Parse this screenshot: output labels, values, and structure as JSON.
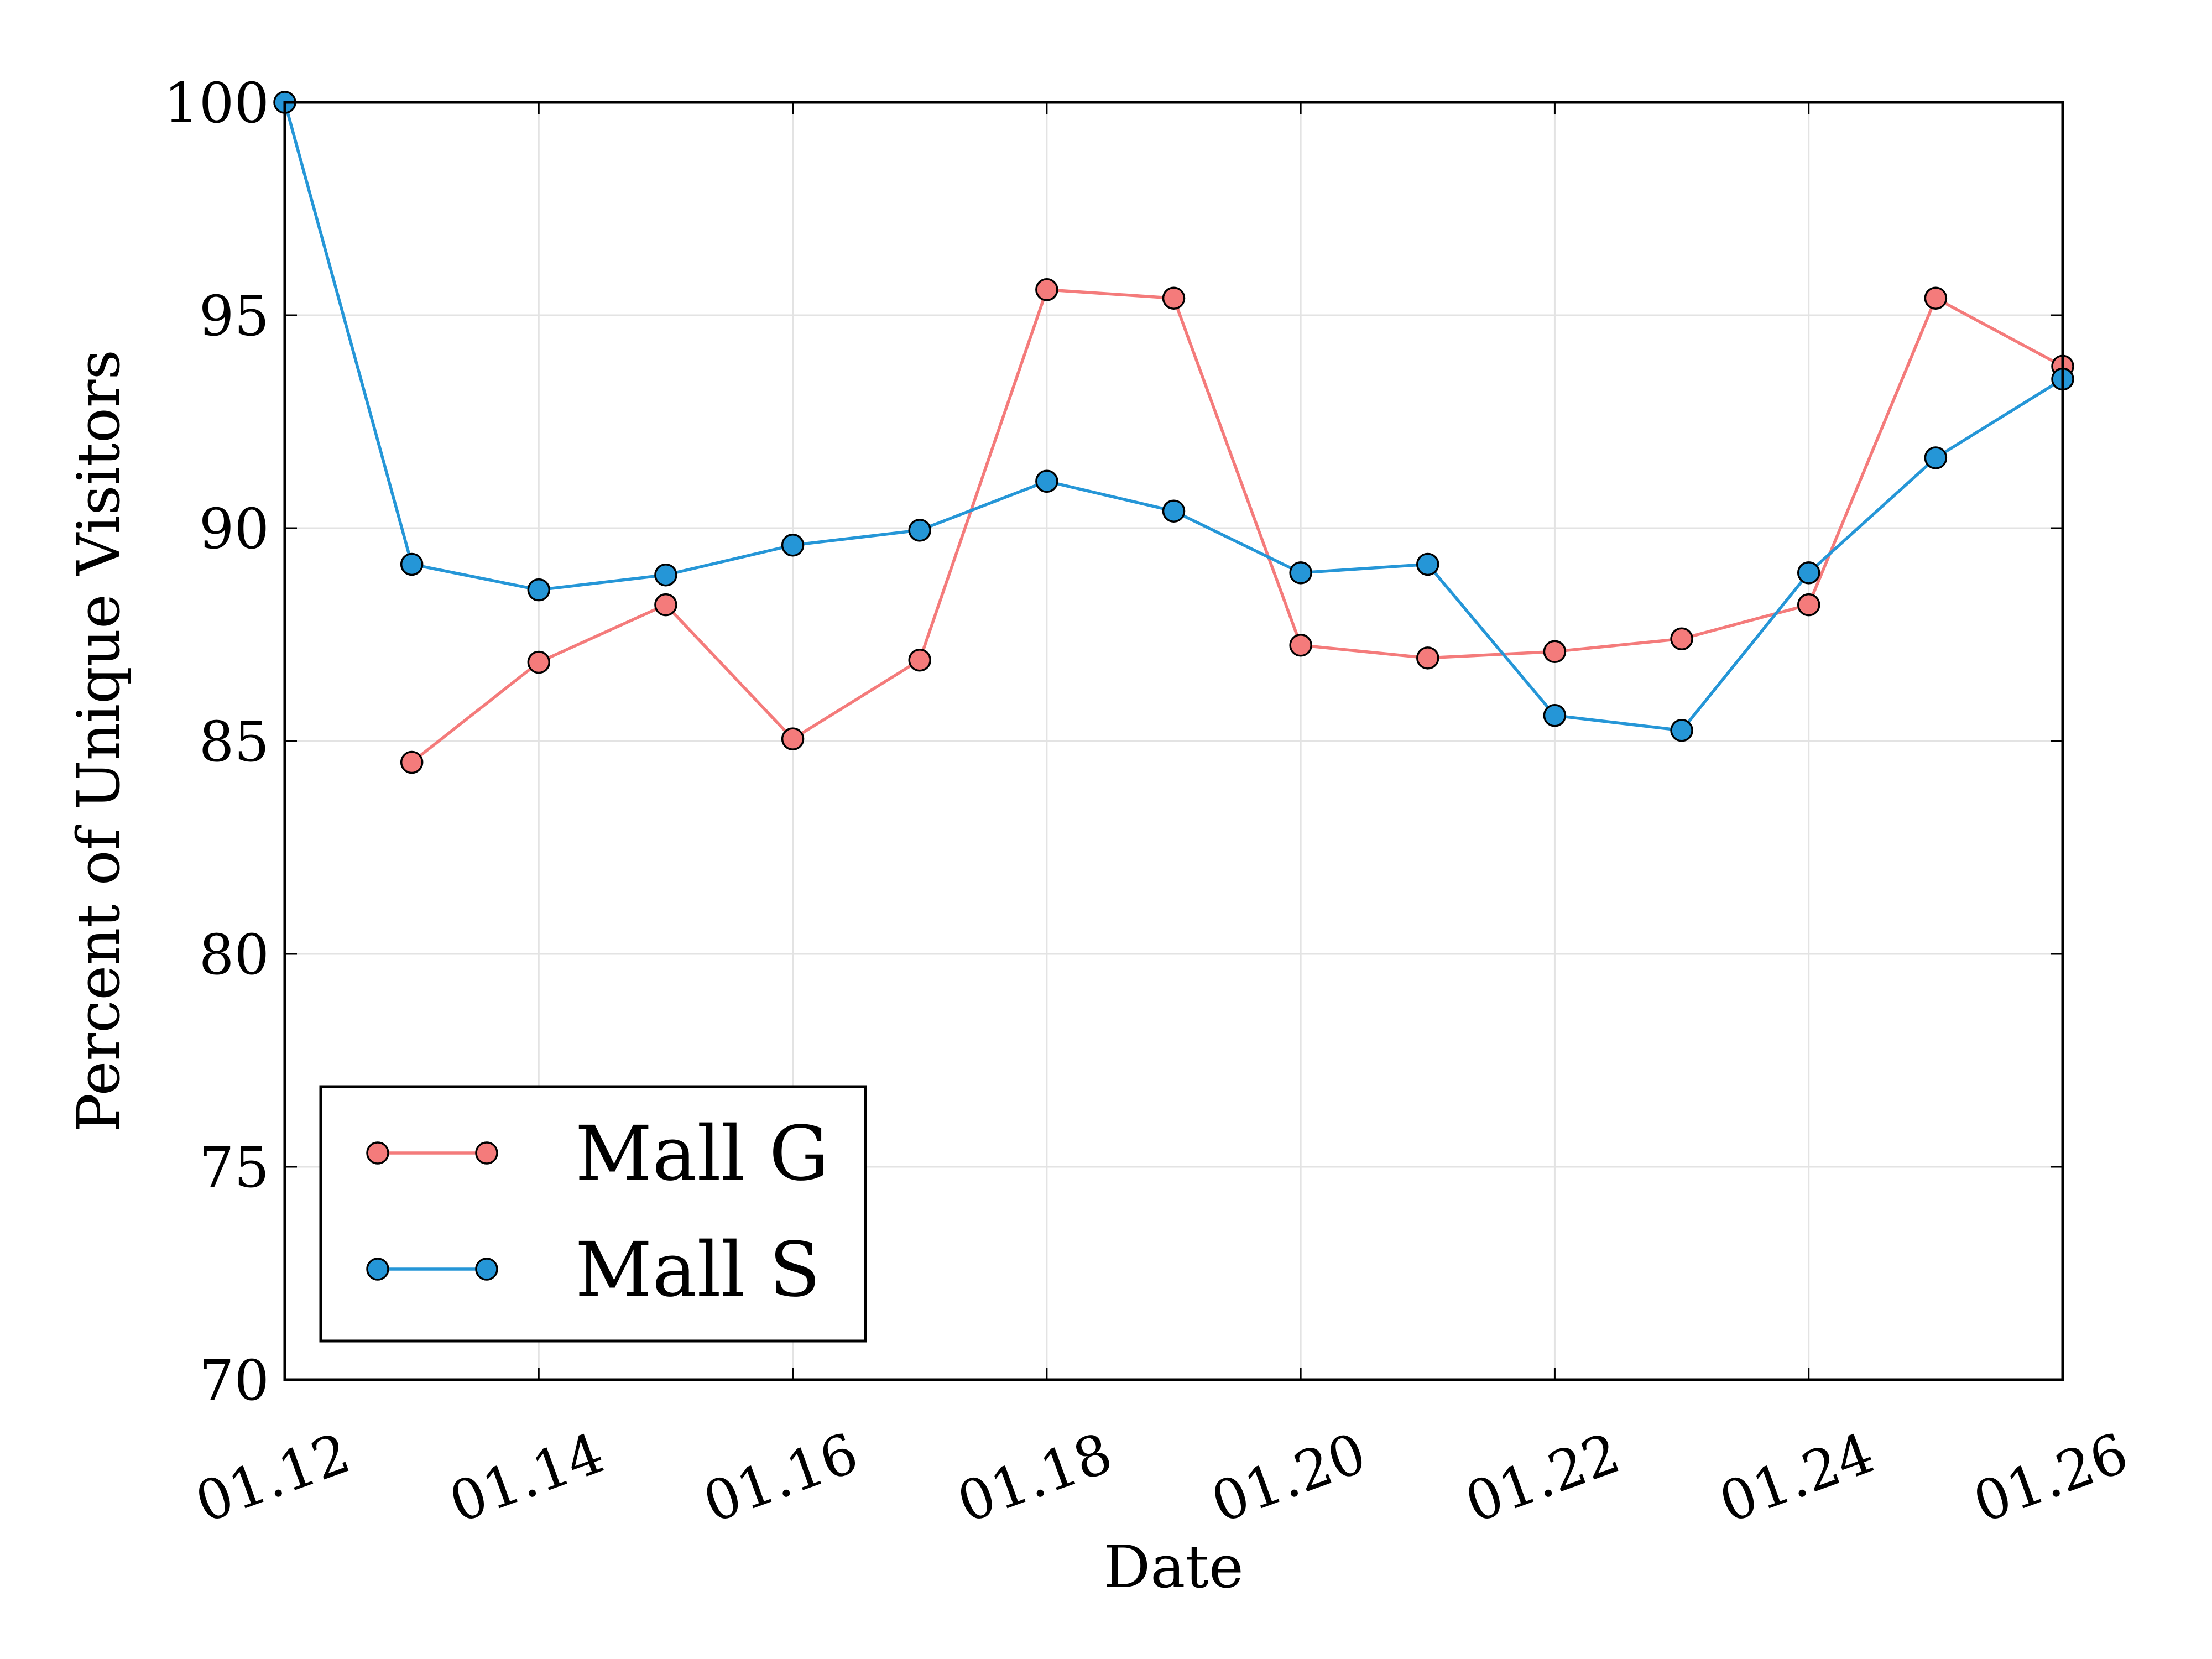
{
  "chart_data": {
    "type": "line",
    "xlabel": "Date",
    "ylabel": "Percent of Unique Visitors",
    "x_tick_labels": [
      "01.12",
      "01.14",
      "01.16",
      "01.18",
      "01.20",
      "01.22",
      "01.24",
      "01.26"
    ],
    "x_tick_values": [
      12,
      14,
      16,
      18,
      20,
      22,
      24,
      26
    ],
    "xlim": [
      12,
      26
    ],
    "ylim": [
      70,
      100
    ],
    "y_ticks": [
      70,
      75,
      80,
      85,
      90,
      95,
      100
    ],
    "grid": true,
    "legend_position": "lower-left",
    "series": [
      {
        "name": "Mall G",
        "color": "#f47b7b",
        "x": [
          13,
          14,
          15,
          16,
          17,
          18,
          19,
          20,
          21,
          22,
          23,
          24,
          25,
          26
        ],
        "values": [
          84.5,
          86.85,
          88.2,
          85.05,
          86.9,
          95.6,
          95.4,
          87.25,
          86.95,
          87.1,
          87.4,
          88.2,
          95.4,
          93.8
        ]
      },
      {
        "name": "Mall S",
        "color": "#2596d7",
        "x": [
          12,
          13,
          14,
          15,
          16,
          17,
          18,
          19,
          20,
          21,
          22,
          23,
          24,
          25,
          26
        ],
        "values": [
          100,
          89.15,
          88.55,
          88.9,
          89.6,
          89.95,
          91.1,
          90.4,
          88.95,
          89.15,
          85.6,
          85.25,
          88.95,
          91.65,
          93.5
        ]
      }
    ]
  }
}
